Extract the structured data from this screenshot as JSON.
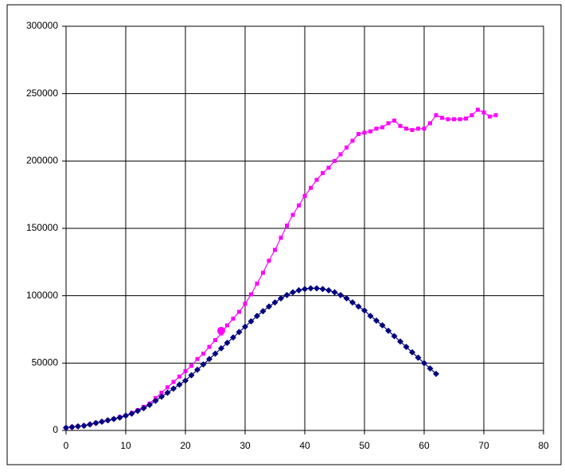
{
  "chart_data": {
    "type": "line",
    "xlim": [
      0,
      80
    ],
    "xticks": [
      0,
      10,
      20,
      30,
      40,
      50,
      60,
      70,
      80
    ],
    "ylim": [
      0,
      300000
    ],
    "yticks": [
      0,
      50000,
      100000,
      150000,
      200000,
      250000,
      300000
    ],
    "grid": true,
    "series": [
      {
        "color": "#ff00ff",
        "marker": "square",
        "x": [
          0,
          1,
          2,
          3,
          4,
          5,
          6,
          7,
          8,
          9,
          10,
          11,
          12,
          13,
          14,
          15,
          16,
          17,
          18,
          19,
          20,
          21,
          22,
          23,
          24,
          25,
          26,
          27,
          28,
          29,
          30,
          31,
          32,
          33,
          34,
          35,
          36,
          37,
          38,
          39,
          40,
          41,
          42,
          43,
          44,
          45,
          46,
          47,
          48,
          49,
          50,
          51,
          52,
          53,
          54,
          55,
          56,
          57,
          58,
          59,
          60,
          61,
          62,
          63,
          64,
          65,
          66,
          67,
          68,
          69,
          70,
          71,
          72
        ],
        "values": [
          2000,
          2500,
          3000,
          3500,
          4500,
          5500,
          6500,
          7500,
          8500,
          10000,
          11000,
          13000,
          15000,
          17500,
          20000,
          24000,
          28000,
          32000,
          36000,
          40000,
          44000,
          48000,
          53000,
          57000,
          62000,
          67000,
          72000,
          78000,
          83000,
          88000,
          94000,
          101000,
          109000,
          117000,
          126000,
          134000,
          143000,
          152000,
          160000,
          167000,
          174000,
          180000,
          186000,
          191000,
          195000,
          200000,
          205000,
          210000,
          215000,
          220000,
          221000,
          222000,
          224000,
          225000,
          228000,
          230000,
          226000,
          224000,
          223000,
          224000,
          224000,
          228000,
          234000,
          232000,
          231000,
          231000,
          231000,
          231500,
          234000,
          238000,
          236000,
          233000,
          234000
        ]
      },
      {
        "color": "#000080",
        "marker": "diamond",
        "x": [
          0,
          1,
          2,
          3,
          4,
          5,
          6,
          7,
          8,
          9,
          10,
          11,
          12,
          13,
          14,
          15,
          16,
          17,
          18,
          19,
          20,
          21,
          22,
          23,
          24,
          25,
          26,
          27,
          28,
          29,
          30,
          31,
          32,
          33,
          34,
          35,
          36,
          37,
          38,
          39,
          40,
          41,
          42,
          43,
          44,
          45,
          46,
          47,
          48,
          49,
          50,
          51,
          52,
          53,
          54,
          55,
          56,
          57,
          58,
          59,
          60,
          61,
          62
        ],
        "values": [
          2000,
          2500,
          3000,
          3500,
          4500,
          5500,
          6500,
          7500,
          8500,
          9500,
          11000,
          12500,
          14500,
          16500,
          19000,
          22000,
          25000,
          28000,
          31000,
          34000,
          37000,
          41000,
          45000,
          49000,
          53000,
          57000,
          61000,
          65000,
          69000,
          73000,
          77000,
          81000,
          85000,
          88500,
          92000,
          95000,
          98000,
          100500,
          102500,
          104000,
          105000,
          105500,
          105500,
          105000,
          104000,
          102500,
          100500,
          98000,
          95000,
          92000,
          89000,
          85000,
          81500,
          78000,
          74000,
          70000,
          66000,
          62000,
          58000,
          54000,
          50000,
          46000,
          42000
        ]
      },
      {
        "color": "#ff00ff",
        "marker": "circle",
        "x": [
          26
        ],
        "values": [
          74000
        ]
      }
    ]
  }
}
